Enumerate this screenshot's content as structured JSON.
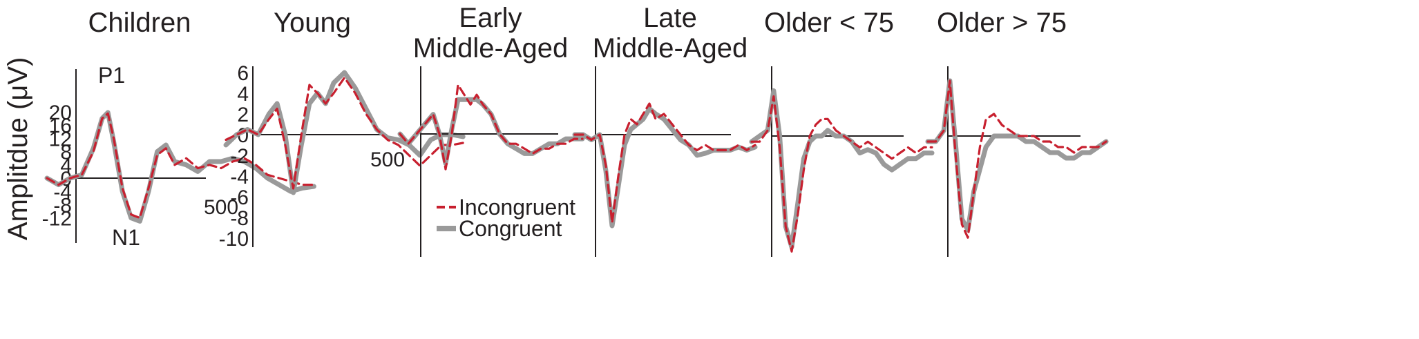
{
  "figure": {
    "ylabel": "Amplitdue  (μV)",
    "colors": {
      "congruent": "#9a9a9a",
      "incongruent": "#c8202f",
      "axis": "#231f20"
    },
    "legend": {
      "incongruent": "Incongruent",
      "congruent": "Congruent"
    }
  },
  "chart_data": [
    {
      "type": "line",
      "title": "Children",
      "ylim": [
        -13,
        20
      ],
      "yticks": [
        "20",
        "16",
        "12",
        "8",
        "4",
        "0",
        "-4",
        "-8",
        "-12"
      ],
      "xtick_label": "500",
      "annotations": [
        "P1",
        "N1"
      ],
      "x_ms": [
        -100,
        -60,
        -20,
        20,
        60,
        90,
        110,
        130,
        160,
        190,
        220,
        250,
        280,
        310,
        340,
        380,
        420,
        460,
        500,
        540,
        580,
        620,
        660,
        700,
        740,
        780,
        820
      ],
      "series": [
        {
          "name": "Incongruent",
          "values": [
            0,
            -2,
            0,
            1,
            8,
            18,
            19.5,
            12,
            -3,
            -11,
            -12,
            -3,
            7,
            9,
            4,
            6,
            3,
            4,
            3,
            5,
            6,
            4,
            1,
            0,
            -1,
            -2,
            -2
          ]
        },
        {
          "name": "Congruent",
          "values": [
            0,
            -2,
            0,
            1,
            9,
            18,
            19.8,
            11,
            -4,
            -12,
            -13,
            -4,
            8,
            10,
            5,
            4,
            2,
            5,
            5,
            6,
            5,
            3,
            0,
            -2,
            -4,
            -3,
            -2.5
          ]
        }
      ]
    },
    {
      "type": "line",
      "title": "Young",
      "ylim": [
        -10,
        6
      ],
      "yticks": [
        "6",
        "4",
        "2",
        "0",
        "-2",
        "-4",
        "-6",
        "-8",
        "-10"
      ],
      "xtick_label": "500",
      "x_ms": [
        -100,
        -60,
        -20,
        20,
        60,
        90,
        120,
        150,
        180,
        210,
        240,
        270,
        300,
        340,
        380,
        420,
        460,
        500,
        540,
        580,
        620,
        660,
        700,
        740,
        780
      ],
      "series": [
        {
          "name": "Incongruent",
          "values": [
            -0.5,
            0,
            0.5,
            0,
            1.5,
            2.5,
            -1,
            -5.2,
            0,
            4.8,
            4,
            3,
            4,
            5.5,
            4,
            2,
            0.5,
            -0.5,
            -1,
            -2,
            -3,
            -2,
            -1,
            -1,
            -0.8
          ]
        },
        {
          "name": "Congruent",
          "values": [
            -1,
            0,
            0.5,
            0,
            2,
            3,
            0,
            -5.6,
            -1,
            3,
            4,
            3,
            5,
            6,
            4.5,
            2.5,
            0.5,
            -0.3,
            -0.5,
            -1,
            -2,
            -0.5,
            0,
            0,
            -0.2
          ]
        }
      ]
    },
    {
      "type": "line",
      "title": "Early\nMiddle-Aged",
      "ylim": [
        -10,
        6
      ],
      "x_ms": [
        -100,
        -60,
        -20,
        20,
        60,
        90,
        120,
        150,
        180,
        210,
        240,
        270,
        300,
        340,
        380,
        420,
        460,
        500,
        540,
        580,
        620,
        660,
        700,
        740,
        780
      ],
      "series": [
        {
          "name": "Incongruent",
          "values": [
            0,
            -1,
            0,
            1,
            2,
            0,
            -3.6,
            0,
            5,
            4,
            3,
            4,
            3,
            2,
            0,
            -1,
            -1,
            -1.5,
            -2,
            -1.5,
            -1.5,
            -1,
            -1,
            -0.5,
            -0.5
          ]
        },
        {
          "name": "Congruent",
          "values": [
            0,
            -1,
            0,
            1,
            2,
            0,
            -3,
            0.5,
            3.5,
            3.5,
            3.5,
            3.5,
            3,
            2,
            0,
            -1,
            -1.5,
            -2,
            -2,
            -1.5,
            -1,
            -1,
            -0.5,
            -0.5,
            -0.5
          ]
        }
      ]
    },
    {
      "type": "line",
      "title": "Late\nMiddle-Aged",
      "ylim": [
        -10,
        6
      ],
      "x_ms": [
        -100,
        -60,
        -20,
        20,
        50,
        80,
        110,
        140,
        170,
        200,
        230,
        260,
        290,
        330,
        370,
        410,
        450,
        490,
        530,
        570,
        610,
        650,
        690,
        730,
        770
      ],
      "series": [
        {
          "name": "Incongruent",
          "values": [
            0,
            0,
            -0.5,
            0,
            -3,
            -8.5,
            -4,
            0,
            1.5,
            1,
            2,
            3,
            1.5,
            2,
            1,
            0,
            -1,
            -1.5,
            -1,
            -1.5,
            -1.5,
            -1.5,
            -1,
            -1.5,
            -1
          ]
        },
        {
          "name": "Congruent",
          "values": [
            0,
            0,
            -0.5,
            0,
            -3.5,
            -8.8,
            -5,
            -1,
            0.5,
            1,
            1.5,
            2.5,
            2,
            1.5,
            0.5,
            -0.5,
            -1,
            -2,
            -1.8,
            -1.5,
            -1.5,
            -1.5,
            -1.2,
            -1.5,
            -1.2
          ]
        }
      ]
    },
    {
      "type": "line",
      "title": "Older < 75",
      "ylim": [
        -10,
        6
      ],
      "x_ms": [
        -100,
        -60,
        -20,
        10,
        40,
        70,
        100,
        130,
        160,
        190,
        220,
        250,
        280,
        320,
        360,
        400,
        440,
        480,
        520,
        560,
        600,
        640,
        680,
        720,
        760,
        800
      ],
      "series": [
        {
          "name": "Incongruent",
          "values": [
            -0.5,
            -0.5,
            0.5,
            3.5,
            -1,
            -8,
            -10.2,
            -7,
            -3,
            0,
            1,
            1.5,
            1.5,
            0.5,
            0,
            -0.5,
            -1,
            -0.5,
            -1,
            -1.5,
            -2,
            -1.5,
            -1,
            -1.5,
            -1,
            -1
          ]
        },
        {
          "name": "Congruent",
          "values": [
            -0.5,
            0,
            0.5,
            4,
            0,
            -8,
            -9.8,
            -6,
            -2,
            -0.5,
            0,
            0,
            0.5,
            0,
            0,
            -0.5,
            -1.5,
            -1.2,
            -1.5,
            -2.5,
            -3,
            -2.5,
            -2,
            -2,
            -1.5,
            -1.5
          ]
        }
      ]
    },
    {
      "type": "line",
      "title": "Older > 75",
      "ylim": [
        -10,
        6
      ],
      "x_ms": [
        -100,
        -60,
        -20,
        10,
        40,
        70,
        100,
        130,
        160,
        190,
        230,
        270,
        310,
        350,
        390,
        430,
        470,
        510,
        550,
        590,
        630,
        670,
        710,
        750,
        790
      ],
      "series": [
        {
          "name": "Incongruent",
          "values": [
            -0.5,
            -0.5,
            0.5,
            5,
            -2,
            -8,
            -9.2,
            -5,
            -1,
            1.5,
            2,
            1,
            0.5,
            0,
            0,
            0,
            -0.5,
            -0.5,
            -1,
            -1,
            -1.5,
            -1,
            -1,
            -1,
            -0.5
          ]
        },
        {
          "name": "Congruent",
          "values": [
            -0.5,
            -0.5,
            0.5,
            5,
            -1,
            -7.5,
            -8.5,
            -5,
            -3,
            -1,
            0,
            0,
            0,
            0,
            -0.5,
            -0.5,
            -1,
            -1.5,
            -1.5,
            -2,
            -2,
            -1.5,
            -1.5,
            -1,
            -0.5
          ]
        }
      ]
    }
  ]
}
